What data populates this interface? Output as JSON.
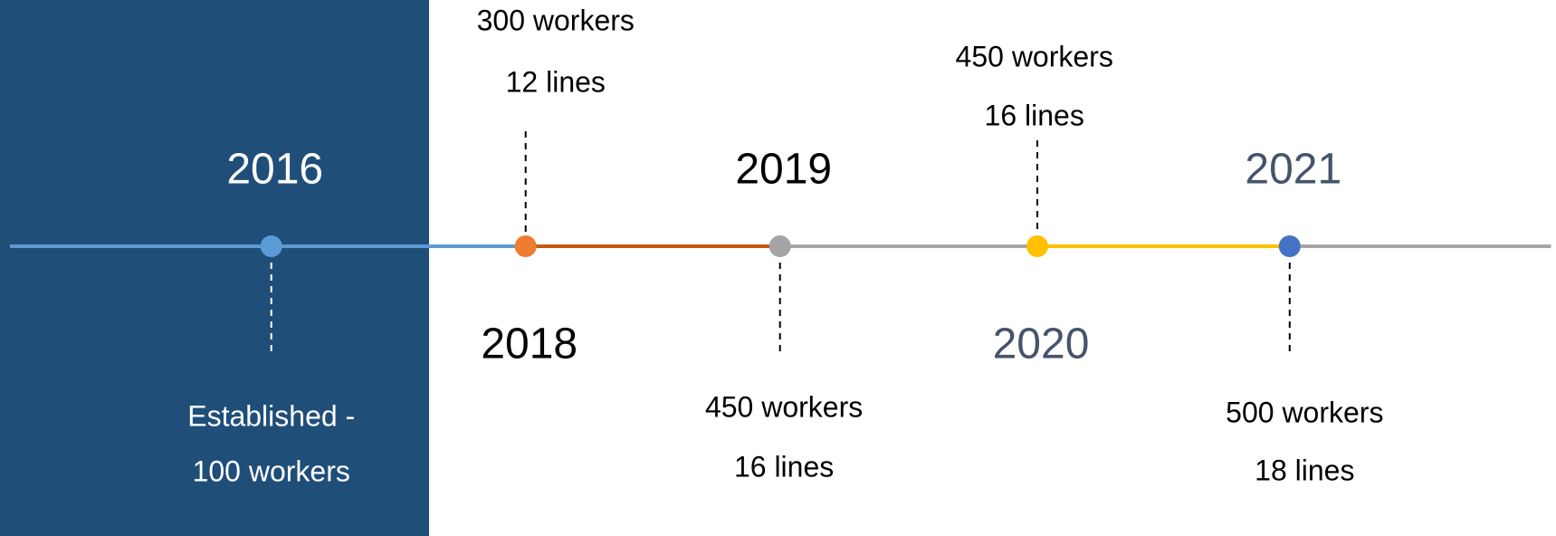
{
  "events": [
    {
      "year": "2016",
      "details": [
        "Established -",
        "100 workers"
      ]
    },
    {
      "year": "2018",
      "details": [
        "300 workers",
        "12 lines"
      ]
    },
    {
      "year": "2019",
      "details": [
        "450 workers",
        "16 lines"
      ]
    },
    {
      "year": "2020",
      "details": [
        "450 workers",
        "16 lines"
      ]
    },
    {
      "year": "2021",
      "details": [
        "500 workers",
        "18 lines"
      ]
    }
  ]
}
